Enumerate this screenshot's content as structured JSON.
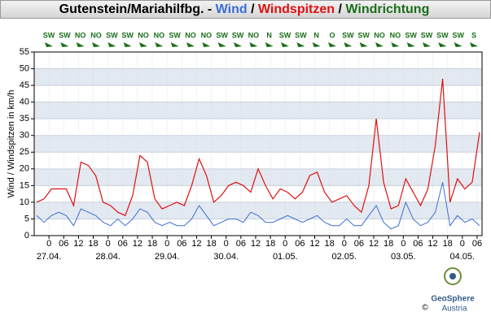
{
  "chart_data": {
    "type": "line",
    "title": "Gutenstein/Mariahilfbg. -",
    "title_separator": "/",
    "direction_title": "Windrichtung",
    "direction_color": "#1a6e1a",
    "y_label": "Wind / Windspitzen in km/h",
    "x": [
      -5,
      -2,
      1,
      4,
      7,
      10,
      13,
      16,
      19,
      22,
      25,
      28,
      31,
      34,
      37,
      40,
      43,
      46,
      49,
      52,
      55,
      58,
      61,
      64,
      67,
      70,
      73,
      76,
      79,
      82,
      85,
      88,
      91,
      94,
      97,
      100,
      103,
      106,
      109,
      112,
      115,
      118,
      121,
      124,
      127,
      130,
      133,
      136,
      139,
      142,
      145,
      148,
      151,
      154,
      157,
      160,
      163,
      166,
      169,
      172,
      175
    ],
    "series": [
      {
        "name": "Wind",
        "color": "#3b6fd6",
        "values": [
          6,
          4,
          6,
          7,
          6,
          3,
          8,
          7,
          6,
          4,
          3,
          5,
          3,
          5,
          8,
          7,
          4,
          3,
          4,
          3,
          3,
          5,
          9,
          6,
          3,
          4,
          5,
          5,
          4,
          7,
          6,
          4,
          4,
          5,
          6,
          5,
          4,
          5,
          6,
          4,
          3,
          3,
          5,
          3,
          3,
          6,
          9,
          4,
          2,
          3,
          10,
          5,
          3,
          4,
          7,
          16,
          3,
          6,
          4,
          5,
          3
        ]
      },
      {
        "name": "Windspitzen",
        "color": "#e01010",
        "values": [
          10,
          11,
          14,
          14,
          14,
          9,
          22,
          21,
          18,
          10,
          9,
          7,
          6,
          12,
          24,
          22,
          11,
          8,
          9,
          10,
          9,
          15,
          23,
          18,
          10,
          12,
          15,
          16,
          15,
          13,
          20,
          15,
          11,
          14,
          13,
          11,
          13,
          18,
          19,
          13,
          10,
          11,
          12,
          9,
          7,
          15,
          35,
          16,
          8,
          9,
          17,
          13,
          9,
          14,
          27,
          47,
          10,
          17,
          14,
          16,
          31
        ]
      }
    ],
    "xlim": [
      -6,
      176
    ],
    "xticks": [
      {
        "value": 0,
        "label": "0"
      },
      {
        "value": 6,
        "label": "06"
      },
      {
        "value": 12,
        "label": "12"
      },
      {
        "value": 18,
        "label": "18"
      },
      {
        "value": 24,
        "label": "0"
      },
      {
        "value": 30,
        "label": "06"
      },
      {
        "value": 36,
        "label": "12"
      },
      {
        "value": 42,
        "label": "18"
      },
      {
        "value": 48,
        "label": "0"
      },
      {
        "value": 54,
        "label": "06"
      },
      {
        "value": 60,
        "label": "12"
      },
      {
        "value": 66,
        "label": "18"
      },
      {
        "value": 72,
        "label": "0"
      },
      {
        "value": 78,
        "label": "06"
      },
      {
        "value": 84,
        "label": "12"
      },
      {
        "value": 90,
        "label": "18"
      },
      {
        "value": 96,
        "label": "0"
      },
      {
        "value": 102,
        "label": "06"
      },
      {
        "value": 108,
        "label": "12"
      },
      {
        "value": 114,
        "label": "18"
      },
      {
        "value": 120,
        "label": "0"
      },
      {
        "value": 126,
        "label": "06"
      },
      {
        "value": 132,
        "label": "12"
      },
      {
        "value": 138,
        "label": "18"
      },
      {
        "value": 144,
        "label": "0"
      },
      {
        "value": 150,
        "label": "06"
      },
      {
        "value": 156,
        "label": "12"
      },
      {
        "value": 162,
        "label": "18"
      },
      {
        "value": 168,
        "label": "0"
      },
      {
        "value": 174,
        "label": "06"
      }
    ],
    "date_labels": [
      {
        "value": 0,
        "label": "27.04."
      },
      {
        "value": 24,
        "label": "28.04."
      },
      {
        "value": 48,
        "label": "29.04."
      },
      {
        "value": 72,
        "label": "30.04."
      },
      {
        "value": 96,
        "label": "01.05."
      },
      {
        "value": 120,
        "label": "02.05."
      },
      {
        "value": 144,
        "label": "03.05."
      },
      {
        "value": 168,
        "label": "04.05."
      }
    ],
    "ylim": [
      0,
      55
    ],
    "yticks": [
      0,
      5,
      10,
      15,
      20,
      25,
      30,
      35,
      40,
      45,
      50,
      55
    ],
    "grid": true,
    "directions": [
      "SW",
      "SW",
      "NO",
      "NO",
      "SW",
      "SW",
      "NO",
      "NO",
      "SW",
      "NO",
      "NO",
      "SW",
      "SW",
      "NO",
      "N",
      "SW",
      "SW",
      "N",
      "O",
      "SW",
      "SW",
      "NO",
      "NO",
      "SW",
      "SW",
      "SW",
      "SW",
      "S"
    ],
    "logo": {
      "name": "GeoSphere",
      "country": "Austria",
      "copyright": "©"
    }
  }
}
